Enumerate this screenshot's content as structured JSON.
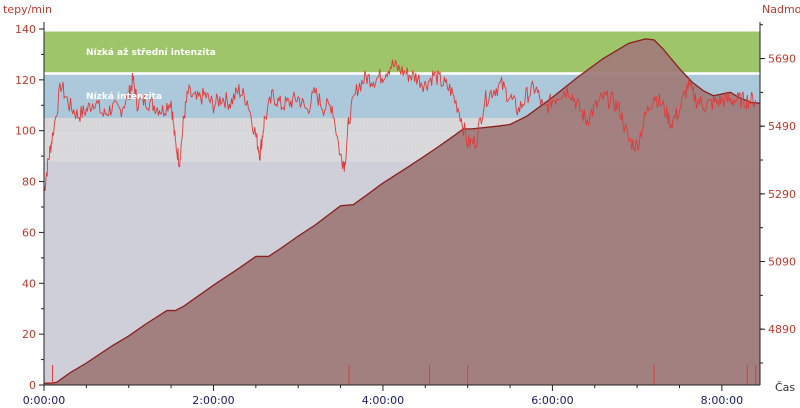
{
  "chart_data": {
    "type": "line",
    "left_axis_label": "tepy/min",
    "right_axis_label": "Nadmoř",
    "x_axis_label": "Čas",
    "x_ticks": [
      "0:00:00",
      "2:00:00",
      "4:00:00",
      "6:00:00",
      "8:00:00"
    ],
    "x_range_hours": [
      0,
      8.45
    ],
    "left_ticks": [
      "0",
      "20",
      "40",
      "60",
      "80",
      "100",
      "120",
      "140"
    ],
    "left_range": [
      0,
      140
    ],
    "right_ticks": [
      "4890",
      "5090",
      "5290",
      "5490",
      "5690"
    ],
    "right_range": [
      4725,
      5798
    ],
    "zones": [
      {
        "label": "Nízká až střední intenzita",
        "from": 123,
        "to": 139,
        "color": "#9fc56a"
      },
      {
        "label": "Nízká intenzita",
        "from": 105,
        "to": 122,
        "color": "#abc9da"
      },
      {
        "label": "",
        "from": 99,
        "to": 105,
        "color": "#d8d8da"
      },
      {
        "label": "",
        "from": 88,
        "to": 99,
        "color": "#dadadd"
      },
      {
        "label": "",
        "from": 0,
        "to": 88,
        "color": "#cfcfda"
      }
    ],
    "series": [
      {
        "type": "area",
        "axis": "right",
        "color": "#a07a78",
        "x": [
          0,
          0.1,
          0.15,
          0.3,
          0.5,
          0.8,
          1.0,
          1.2,
          1.45,
          1.55,
          1.65,
          2.0,
          2.3,
          2.5,
          2.65,
          2.8,
          3.0,
          3.2,
          3.5,
          3.65,
          3.8,
          4.0,
          4.3,
          4.6,
          4.8,
          4.95,
          5.05,
          5.35,
          5.5,
          5.7,
          6.0,
          6.3,
          6.6,
          6.9,
          7.1,
          7.2,
          7.3,
          7.5,
          7.65,
          7.78,
          7.9,
          8.0,
          8.1,
          8.2,
          8.35,
          8.45
        ],
        "y": [
          4730,
          4731,
          4733,
          4760,
          4790,
          4840,
          4870,
          4905,
          4945,
          4945,
          4958,
          5020,
          5070,
          5105,
          5105,
          5130,
          5165,
          5198,
          5255,
          5258,
          5285,
          5322,
          5370,
          5420,
          5455,
          5482,
          5482,
          5490,
          5495,
          5520,
          5575,
          5635,
          5690,
          5735,
          5748,
          5745,
          5720,
          5660,
          5620,
          5595,
          5580,
          5585,
          5590,
          5575,
          5560,
          5558
        ]
      },
      {
        "type": "line",
        "axis": "left",
        "name": "",
        "color": "#e03a3a",
        "x": [
          0,
          0.05,
          0.1,
          0.2,
          0.3,
          0.4,
          0.5,
          0.6,
          0.7,
          0.8,
          0.9,
          1.0,
          1.05,
          1.1,
          1.2,
          1.3,
          1.4,
          1.5,
          1.55,
          1.6,
          1.65,
          1.7,
          1.8,
          1.9,
          2.0,
          2.1,
          2.2,
          2.3,
          2.4,
          2.5,
          2.55,
          2.6,
          2.7,
          2.8,
          2.9,
          3.0,
          3.1,
          3.2,
          3.3,
          3.4,
          3.5,
          3.55,
          3.6,
          3.7,
          3.8,
          3.9,
          4.0,
          4.1,
          4.2,
          4.3,
          4.4,
          4.5,
          4.6,
          4.7,
          4.8,
          4.9,
          5.0,
          5.1,
          5.2,
          5.3,
          5.4,
          5.5,
          5.6,
          5.7,
          5.8,
          5.9,
          6.0,
          6.1,
          6.2,
          6.3,
          6.4,
          6.5,
          6.6,
          6.7,
          6.8,
          6.9,
          7.0,
          7.1,
          7.2,
          7.3,
          7.4,
          7.5,
          7.6,
          7.7,
          7.8,
          7.9,
          8.0,
          8.1,
          8.2,
          8.3,
          8.4
        ],
        "y": [
          76,
          88,
          98,
          118,
          110,
          106,
          108,
          112,
          106,
          109,
          108,
          114,
          120,
          111,
          112,
          110,
          108,
          112,
          95,
          88,
          105,
          115,
          112,
          114,
          110,
          113,
          111,
          116,
          112,
          98,
          91,
          104,
          114,
          110,
          111,
          113,
          108,
          115,
          109,
          110,
          90,
          87,
          105,
          117,
          121,
          120,
          122,
          126,
          124,
          122,
          121,
          118,
          122,
          119,
          116,
          108,
          95,
          96,
          112,
          116,
          118,
          113,
          108,
          114,
          117,
          108,
          112,
          115,
          116,
          110,
          104,
          109,
          113,
          112,
          108,
          96,
          94,
          106,
          114,
          110,
          103,
          108,
          118,
          112,
          110,
          111,
          112,
          112,
          112,
          112,
          112
        ]
      }
    ],
    "grid": false
  }
}
